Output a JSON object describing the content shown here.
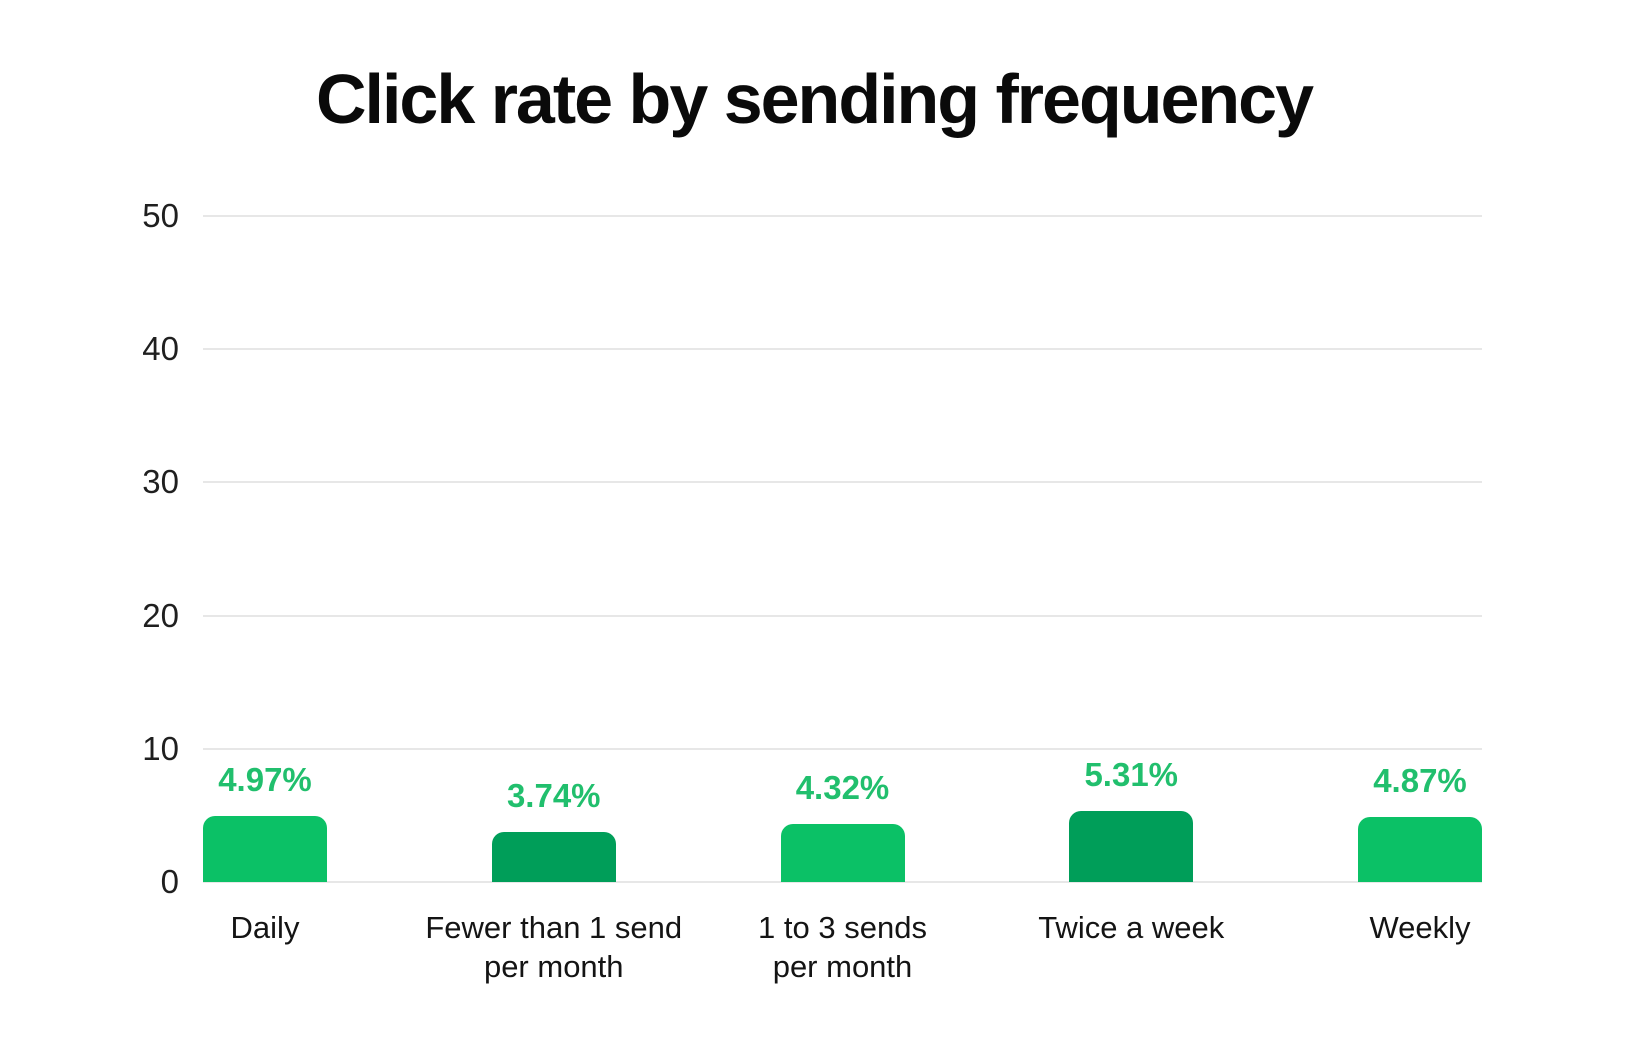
{
  "chart_data": {
    "type": "bar",
    "title": "Click rate by sending frequency",
    "categories": [
      "Daily",
      "Fewer than 1 send\nper month",
      "1 to 3 sends\nper month",
      "Twice a week",
      "Weekly"
    ],
    "values": [
      4.97,
      3.74,
      4.32,
      5.31,
      4.87
    ],
    "value_labels": [
      "4.97%",
      "3.74%",
      "4.32%",
      "5.31%",
      "4.87%"
    ],
    "series": [
      {
        "name": "Click rate",
        "values": [
          4.97,
          3.74,
          4.32,
          5.31,
          4.87
        ]
      }
    ],
    "xlabel": "",
    "ylabel": "",
    "ylim": [
      0,
      50
    ],
    "y_ticks": [
      0,
      10,
      20,
      30,
      40,
      50
    ],
    "grid": true,
    "legend_position": "none",
    "colors": {
      "bar_fills": [
        "#0BC166",
        "#009E59",
        "#0BC166",
        "#009E59",
        "#0BC166"
      ],
      "value_label": "#21BF6D",
      "gridline": "#E7E7E7",
      "axis_tick_text": "#1F1F1F",
      "category_text": "#141414",
      "title_text": "#0A0A0A",
      "background": "#FFFFFF"
    }
  }
}
